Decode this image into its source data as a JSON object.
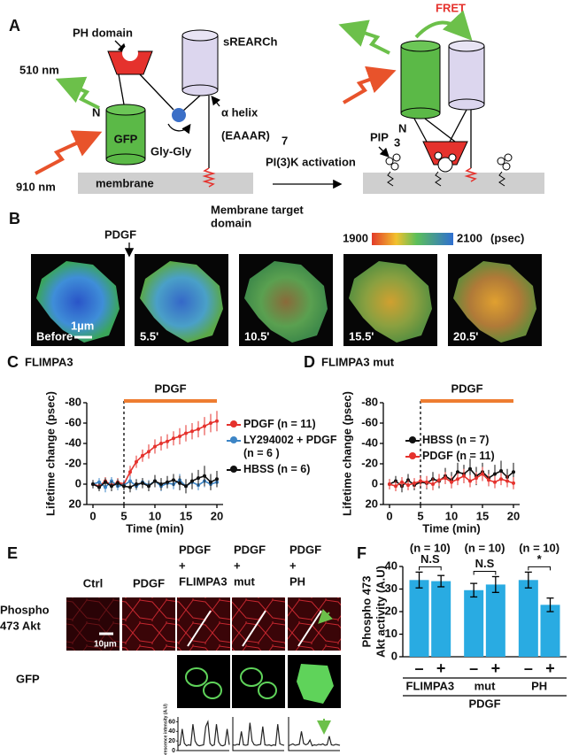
{
  "panel_a": {
    "label": "A",
    "ph_domain": "PH domain",
    "srearch": "sREARCh",
    "emission": "510 nm",
    "n_terminus": "N",
    "gfp": "GFP",
    "linker": "Gly-Gly",
    "helix": "α helix",
    "helix_seq": "(EAAAR)",
    "helix_repeat": "7",
    "excitation": "910 nm",
    "membrane": "membrane",
    "target_domain": [
      "Membrane target",
      "domain"
    ],
    "activation": "PI(3)K activation",
    "fret": "FRET",
    "n_terminus_2": "N",
    "pip": "PIP",
    "pip_sub": "3"
  },
  "panel_b": {
    "label": "B",
    "stimulus": "PDGF",
    "colorbar": {
      "min": 1900,
      "max": 2100,
      "unit": "(psec)"
    },
    "frames": [
      "Before",
      "5.5'",
      "10.5'",
      "15.5'",
      "20.5'"
    ],
    "scale_bar": "1µm"
  },
  "panel_e": {
    "label": "E",
    "columns": [
      "Ctrl",
      "PDGF",
      [
        "PDGF",
        "+",
        "FLIMPA3"
      ],
      [
        "PDGF",
        "+",
        "mut"
      ],
      [
        "PDGF",
        "+",
        "PH"
      ]
    ],
    "rows": [
      [
        "Phospho",
        "473 Akt"
      ],
      "GFP"
    ],
    "scale_bar": "10µm"
  },
  "chart_data": [
    {
      "panel": "C",
      "type": "line",
      "title": "FLIMPA3",
      "xlabel": "Time (min)",
      "ylabel": "Lifetime change (psec)",
      "x": [
        0,
        1,
        2,
        3,
        4,
        5,
        6,
        7,
        8,
        9,
        10,
        11,
        12,
        13,
        14,
        15,
        16,
        17,
        18,
        19,
        20
      ],
      "xlim": [
        -1,
        21
      ],
      "xticks": [
        0,
        5,
        10,
        15,
        20
      ],
      "ylim": [
        20,
        -80
      ],
      "yticks": [
        -80,
        -60,
        -40,
        -20,
        0,
        20
      ],
      "annotation": {
        "text": "PDGF",
        "start": 5,
        "end": 20,
        "color": "#ee7d31"
      },
      "series": [
        {
          "name": "PDGF (n = 11)",
          "color": "#e5322d",
          "values": [
            0,
            2,
            -3,
            1,
            -2,
            0,
            -12,
            -22,
            -28,
            -32,
            -37,
            -40,
            -42,
            -45,
            -47,
            -50,
            -52,
            -54,
            -57,
            -60,
            -62
          ],
          "errors": [
            4,
            5,
            4,
            5,
            4,
            4,
            6,
            6,
            6,
            7,
            7,
            7,
            7,
            7,
            8,
            8,
            8,
            8,
            9,
            9,
            10
          ]
        },
        {
          "name": "LY294002 + PDGF (n = 6 )",
          "color": "#3d85c6",
          "values": [
            0,
            -2,
            3,
            -3,
            2,
            1,
            -3,
            2,
            -2,
            1,
            -3,
            2,
            -1,
            0,
            -4,
            2,
            -2,
            1,
            -3,
            0,
            -2
          ],
          "errors": [
            4,
            4,
            5,
            4,
            4,
            5,
            5,
            4,
            4,
            5,
            5,
            5,
            5,
            5,
            6,
            5,
            5,
            5,
            6,
            5,
            5
          ]
        },
        {
          "name": "HBSS (n = 6)",
          "color": "#111111",
          "values": [
            0,
            3,
            -2,
            2,
            -1,
            2,
            3,
            0,
            -1,
            2,
            -3,
            0,
            -2,
            -4,
            -1,
            2,
            -3,
            -6,
            -8,
            -2,
            -5
          ],
          "errors": [
            4,
            4,
            4,
            5,
            4,
            4,
            5,
            5,
            5,
            5,
            6,
            6,
            6,
            6,
            7,
            7,
            8,
            8,
            10,
            8,
            8
          ]
        }
      ]
    },
    {
      "panel": "D",
      "type": "line",
      "title": "FLIMPA3 mut",
      "xlabel": "Time (min)",
      "ylabel": "Lifetime change (psec)",
      "x": [
        0,
        1,
        2,
        3,
        4,
        5,
        6,
        7,
        8,
        9,
        10,
        11,
        12,
        13,
        14,
        15,
        16,
        17,
        18,
        19,
        20
      ],
      "xlim": [
        -1,
        21
      ],
      "xticks": [
        0,
        5,
        10,
        15,
        20
      ],
      "ylim": [
        20,
        -80
      ],
      "yticks": [
        -80,
        -60,
        -40,
        -20,
        0,
        20
      ],
      "annotation": {
        "text": "PDGF",
        "start": 5,
        "end": 20,
        "color": "#ee7d31"
      },
      "series": [
        {
          "name": "HBSS (n = 7)",
          "color": "#111111",
          "values": [
            0,
            -3,
            2,
            -4,
            1,
            -2,
            -1,
            -5,
            -3,
            -8,
            -4,
            -12,
            -10,
            -15,
            -8,
            -12,
            -6,
            -10,
            -13,
            -7,
            -12
          ],
          "errors": [
            5,
            5,
            6,
            6,
            5,
            6,
            6,
            7,
            7,
            8,
            8,
            9,
            9,
            10,
            9,
            9,
            8,
            9,
            10,
            8,
            9
          ]
        },
        {
          "name": "PDGF (n = 11)",
          "color": "#e5322d",
          "values": [
            0,
            2,
            -2,
            1,
            -1,
            -3,
            -2,
            0,
            -4,
            -6,
            -2,
            -5,
            -8,
            -3,
            -6,
            -10,
            -4,
            -2,
            -5,
            -3,
            -1
          ],
          "errors": [
            5,
            5,
            5,
            5,
            5,
            5,
            6,
            6,
            6,
            6,
            6,
            6,
            7,
            6,
            6,
            7,
            6,
            6,
            6,
            6,
            6
          ]
        }
      ]
    },
    {
      "panel": "F",
      "type": "bar",
      "ylabel": [
        "Phospho 473",
        "Akt activity (A.U)"
      ],
      "xlabel": "PDGF",
      "categories": [
        "–",
        "+",
        "–",
        "+",
        "–",
        "+"
      ],
      "groups": [
        "FLIMPA3",
        "mut",
        "PH"
      ],
      "values": [
        34,
        33.5,
        29.5,
        32,
        34,
        23
      ],
      "errors": [
        3.5,
        2.5,
        3,
        3.5,
        3.5,
        3
      ],
      "ylim": [
        0,
        40
      ],
      "yticks": [
        0,
        10,
        20,
        30,
        40
      ],
      "color": "#29abe2",
      "n_labels": [
        "(n = 10)",
        "(n = 10)",
        "(n = 10)"
      ],
      "significance": [
        "N.S",
        "N.S",
        "*"
      ]
    },
    {
      "panel": "E",
      "type": "line",
      "ylabel": "Fluorescence intensity (A.U)",
      "ylim": [
        0,
        70
      ],
      "yticks": [
        0,
        20,
        40,
        60
      ],
      "values": [
        10,
        12,
        45,
        15,
        10,
        12,
        11,
        55,
        20,
        12,
        10,
        11,
        12,
        50,
        60,
        15,
        10,
        12,
        55,
        18,
        11,
        10,
        12,
        45,
        12
      ]
    },
    {
      "panel": "E",
      "type": "line",
      "ylim": [
        0,
        70
      ],
      "values": [
        12,
        11,
        13,
        12,
        40,
        12,
        11,
        12,
        58,
        20,
        12,
        11,
        12,
        13,
        50,
        12,
        11,
        12,
        10,
        12,
        11,
        55,
        14,
        12,
        11
      ]
    },
    {
      "panel": "E",
      "type": "line",
      "ylim": [
        0,
        70
      ],
      "values": [
        10,
        12,
        14,
        11,
        12,
        13,
        40,
        15,
        12,
        14,
        22,
        10,
        12,
        11,
        13,
        12,
        14,
        11,
        12,
        30,
        12,
        11,
        13,
        12,
        11
      ]
    }
  ]
}
